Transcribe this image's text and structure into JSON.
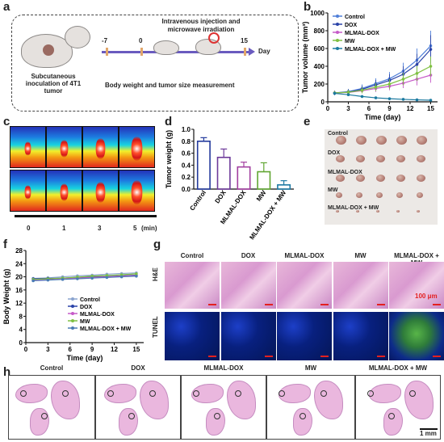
{
  "panels": {
    "a": {
      "label": "a",
      "timeline_title": "Intravenous injection and microwave irradiation",
      "ticks": [
        "-7",
        "0",
        "15"
      ],
      "day_label": "Day",
      "left_caption": "Subcutaneous inoculation of 4T1 tumor",
      "bottom_caption": "Body weight and tumor size measurement"
    },
    "b": {
      "label": "b"
    },
    "c": {
      "label": "c",
      "time_ticks": [
        "0",
        "1",
        "3",
        "5"
      ],
      "unit": "(min)"
    },
    "d": {
      "label": "d"
    },
    "e": {
      "label": "e",
      "row_labels": [
        "Control",
        "DOX",
        "MLMAL-DOX",
        "MW",
        "MLMAL-DOX + MW"
      ]
    },
    "f": {
      "label": "f"
    },
    "g": {
      "label": "g",
      "columns": [
        "Control",
        "DOX",
        "MLMAL-DOX",
        "MW",
        "MLMAL-DOX + MW"
      ],
      "rows": [
        "H&E",
        "TUNEL"
      ],
      "scale": "100 μm"
    },
    "h": {
      "label": "h",
      "columns": [
        "Control",
        "DOX",
        "MLMAL-DOX",
        "MW",
        "MLMAL-DOX + MW"
      ],
      "scale": "1 mm"
    }
  },
  "chart_data": [
    {
      "type": "line",
      "panel": "b",
      "xlabel": "Time (day)",
      "ylabel": "Tumor volume (mm³)",
      "ylim": [
        0,
        1000
      ],
      "yticks": [
        0,
        200,
        400,
        600,
        800,
        1000
      ],
      "xlim": [
        0,
        16
      ],
      "xticks": [
        0,
        3,
        6,
        9,
        12,
        15
      ],
      "x": [
        1,
        3,
        5,
        7,
        9,
        11,
        13,
        15
      ],
      "series": [
        {
          "name": "Control",
          "color": "#4f7fd8",
          "values": [
            100,
            115,
            150,
            205,
            260,
            345,
            470,
            630
          ],
          "err": [
            25,
            30,
            45,
            60,
            75,
            95,
            130,
            170
          ]
        },
        {
          "name": "DOX",
          "color": "#2a43a8",
          "values": [
            100,
            110,
            140,
            190,
            240,
            310,
            420,
            590
          ],
          "err": [
            25,
            30,
            40,
            55,
            70,
            90,
            120,
            160
          ]
        },
        {
          "name": "MLMAL-DOX",
          "color": "#c65ac9",
          "values": [
            100,
            105,
            125,
            150,
            175,
            210,
            255,
            300
          ],
          "err": [
            20,
            25,
            30,
            40,
            45,
            55,
            70,
            85
          ]
        },
        {
          "name": "MW",
          "color": "#7fc142",
          "values": [
            100,
            108,
            130,
            165,
            200,
            255,
            320,
            400
          ],
          "err": [
            20,
            25,
            35,
            45,
            55,
            70,
            85,
            110
          ]
        },
        {
          "name": "MLMAL-DOX + MW",
          "color": "#1b7aa0",
          "values": [
            95,
            80,
            60,
            45,
            35,
            28,
            22,
            18
          ],
          "err": [
            15,
            15,
            12,
            10,
            8,
            8,
            6,
            6
          ]
        }
      ],
      "legend": [
        "Control",
        "DOX",
        "MLMAL-DOX",
        "MW",
        "MLMAL-DOX + MW"
      ]
    },
    {
      "type": "bar",
      "panel": "d",
      "ylabel": "Tumor weight (g)",
      "ylim": [
        0,
        1.0
      ],
      "yticks": [
        0.0,
        0.2,
        0.4,
        0.6,
        0.8,
        1.0
      ],
      "categories": [
        "Control",
        "DOX",
        "MLMAL-DOX",
        "MW",
        "MLMAL-DOX + MW"
      ],
      "values": [
        0.8,
        0.53,
        0.37,
        0.29,
        0.07
      ],
      "err": [
        0.06,
        0.14,
        0.08,
        0.15,
        0.07
      ],
      "colors": [
        "#233a9c",
        "#6d3a9a",
        "#a23fa0",
        "#61a632",
        "#1e7aa4"
      ]
    },
    {
      "type": "line",
      "panel": "f",
      "xlabel": "Time (day)",
      "ylabel": "Body Weight (g)",
      "ylim": [
        0,
        28
      ],
      "yticks": [
        0,
        4,
        8,
        12,
        16,
        20,
        24,
        28
      ],
      "xlim": [
        0,
        16
      ],
      "xticks": [
        0,
        3,
        6,
        9,
        12,
        15
      ],
      "x": [
        1,
        3,
        5,
        7,
        9,
        11,
        13,
        15
      ],
      "series": [
        {
          "name": "Control",
          "color": "#8aa4cf",
          "values": [
            19.5,
            19.7,
            20.0,
            20.3,
            20.5,
            20.8,
            21.0,
            21.2
          ]
        },
        {
          "name": "DOX",
          "color": "#2a43a8",
          "values": [
            19.4,
            19.5,
            19.6,
            19.8,
            20.0,
            20.1,
            20.3,
            20.5
          ]
        },
        {
          "name": "MLMAL-DOX",
          "color": "#c65ac9",
          "values": [
            19.0,
            19.2,
            19.5,
            19.6,
            19.8,
            20.0,
            20.2,
            20.4
          ]
        },
        {
          "name": "MW",
          "color": "#7fc142",
          "values": [
            19.2,
            19.4,
            19.6,
            19.9,
            20.2,
            20.4,
            20.6,
            20.9
          ]
        },
        {
          "name": "MLMAL-DOX + MW",
          "color": "#4a7bb4",
          "values": [
            18.8,
            19.0,
            19.2,
            19.4,
            19.6,
            19.8,
            20.0,
            20.2
          ]
        }
      ],
      "legend": [
        "Control",
        "DOX",
        "MLMAL-DOX",
        "MW",
        "MLMAL-DOX + MW"
      ]
    }
  ]
}
